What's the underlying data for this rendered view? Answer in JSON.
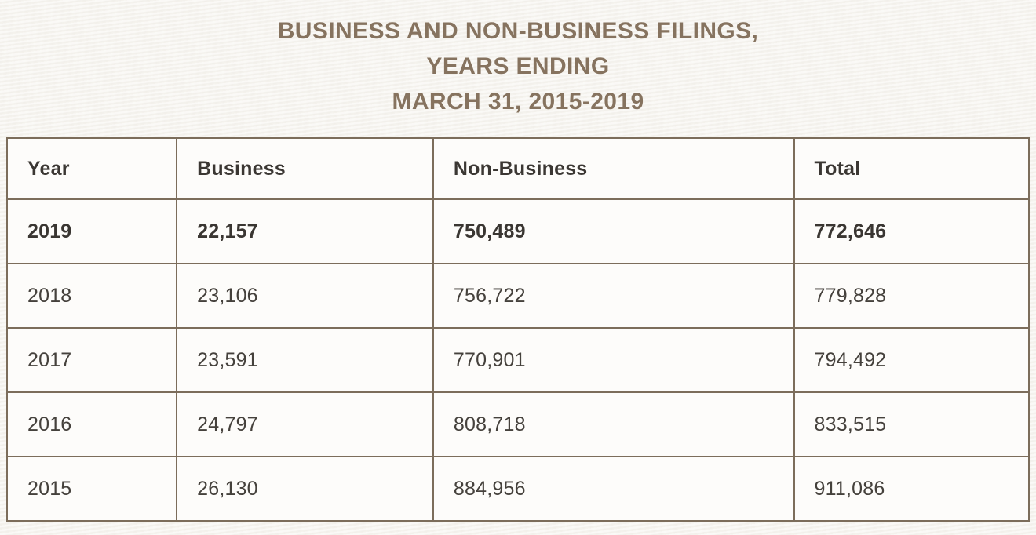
{
  "page": {
    "title_lines": [
      "BUSINESS AND NON-BUSINESS FILINGS,",
      "YEARS ENDING",
      "MARCH 31, 2015-2019"
    ]
  },
  "table": {
    "columns": [
      "Year",
      "Business",
      "Non-Business",
      "Total"
    ],
    "rows": [
      {
        "year": "2019",
        "business": "22,157",
        "non_business": "750,489",
        "total": "772,646",
        "emphasized": true
      },
      {
        "year": "2018",
        "business": "23,106",
        "non_business": "756,722",
        "total": "779,828",
        "emphasized": false
      },
      {
        "year": "2017",
        "business": "23,591",
        "non_business": "770,901",
        "total": "794,492",
        "emphasized": false
      },
      {
        "year": "2016",
        "business": "24,797",
        "non_business": "808,718",
        "total": "833,515",
        "emphasized": false
      },
      {
        "year": "2015",
        "business": "26,130",
        "non_business": "884,956",
        "total": "911,086",
        "emphasized": false
      }
    ]
  },
  "chart_data": {
    "type": "table",
    "title": "BUSINESS AND NON-BUSINESS FILINGS, YEARS ENDING MARCH 31, 2015-2019",
    "categories": [
      "2019",
      "2018",
      "2017",
      "2016",
      "2015"
    ],
    "series": [
      {
        "name": "Business",
        "values": [
          22157,
          23106,
          23591,
          24797,
          26130
        ]
      },
      {
        "name": "Non-Business",
        "values": [
          750489,
          756722,
          770901,
          808718,
          884956
        ]
      },
      {
        "name": "Total",
        "values": [
          772646,
          779828,
          794492,
          833515,
          911086
        ]
      }
    ],
    "layout_hints": {
      "emphasized_row": "2019",
      "columns_left_aligned": true,
      "grid": "full-borders"
    }
  },
  "colors": {
    "title_text": "#86735F",
    "table_border": "#7C6D5B",
    "header_text": "#3B3733",
    "body_text": "#45413C",
    "page_background": "#F6F4EF",
    "cell_background": "#FDFCFA"
  }
}
